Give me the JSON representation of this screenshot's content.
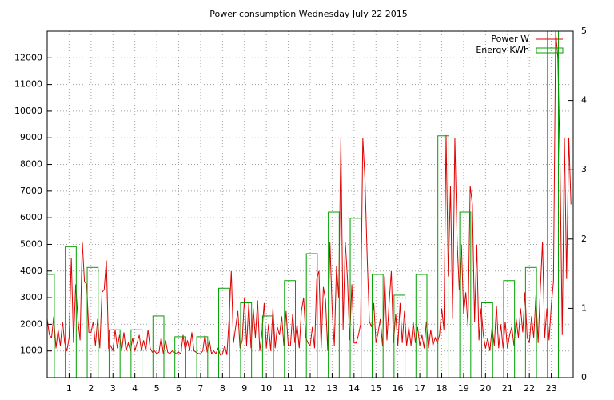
{
  "chart_data": {
    "type": "line",
    "title": "Power consumption Wednesday July 22 2015",
    "xlim": [
      0,
      24
    ],
    "xticks": [
      1,
      2,
      3,
      4,
      5,
      6,
      7,
      8,
      9,
      10,
      11,
      12,
      13,
      14,
      15,
      16,
      17,
      18,
      19,
      20,
      21,
      22,
      23
    ],
    "ylim": [
      0,
      13000
    ],
    "yticks": [
      1000,
      2000,
      3000,
      4000,
      5000,
      6000,
      7000,
      8000,
      9000,
      10000,
      11000,
      12000
    ],
    "y2lim": [
      0,
      5
    ],
    "y2ticks": [
      0,
      1,
      2,
      3,
      4,
      5
    ],
    "grid": true,
    "legend": "top-right",
    "series": [
      {
        "name": "Power W",
        "color": "#e00000",
        "style": "line",
        "x": [
          0,
          0.1,
          0.2,
          0.3,
          0.4,
          0.5,
          0.6,
          0.7,
          0.8,
          0.9,
          1,
          1.1,
          1.2,
          1.3,
          1.4,
          1.5,
          1.6,
          1.7,
          1.8,
          1.9,
          2,
          2.1,
          2.2,
          2.3,
          2.4,
          2.5,
          2.6,
          2.7,
          2.8,
          2.9,
          3,
          3.1,
          3.2,
          3.3,
          3.4,
          3.5,
          3.6,
          3.7,
          3.8,
          3.9,
          4,
          4.1,
          4.2,
          4.3,
          4.4,
          4.5,
          4.6,
          4.7,
          4.8,
          4.9,
          5,
          5.1,
          5.2,
          5.3,
          5.4,
          5.5,
          5.6,
          5.7,
          5.8,
          5.9,
          6,
          6.1,
          6.2,
          6.3,
          6.4,
          6.5,
          6.6,
          6.7,
          6.8,
          6.9,
          7,
          7.1,
          7.2,
          7.3,
          7.4,
          7.5,
          7.6,
          7.7,
          7.8,
          7.9,
          8,
          8.1,
          8.2,
          8.3,
          8.4,
          8.5,
          8.6,
          8.7,
          8.8,
          8.9,
          9,
          9.1,
          9.2,
          9.3,
          9.4,
          9.5,
          9.6,
          9.7,
          9.8,
          9.9,
          10,
          10.1,
          10.2,
          10.3,
          10.4,
          10.5,
          10.6,
          10.7,
          10.8,
          10.9,
          11,
          11.1,
          11.2,
          11.3,
          11.4,
          11.5,
          11.6,
          11.7,
          11.8,
          11.9,
          12,
          12.1,
          12.2,
          12.3,
          12.4,
          12.5,
          12.6,
          12.7,
          12.8,
          12.9,
          13,
          13.1,
          13.2,
          13.3,
          13.4,
          13.5,
          13.6,
          13.7,
          13.8,
          13.9,
          14,
          14.1,
          14.2,
          14.3,
          14.4,
          14.5,
          14.6,
          14.7,
          14.8,
          14.9,
          15,
          15.1,
          15.2,
          15.3,
          15.4,
          15.5,
          15.6,
          15.7,
          15.8,
          15.9,
          16,
          16.1,
          16.2,
          16.3,
          16.4,
          16.5,
          16.6,
          16.7,
          16.8,
          16.9,
          17,
          17.1,
          17.2,
          17.3,
          17.4,
          17.5,
          17.6,
          17.7,
          17.8,
          17.9,
          18,
          18.1,
          18.2,
          18.3,
          18.4,
          18.5,
          18.6,
          18.7,
          18.8,
          18.9,
          19,
          19.1,
          19.2,
          19.3,
          19.4,
          19.5,
          19.6,
          19.7,
          19.8,
          19.9,
          20,
          20.1,
          20.2,
          20.3,
          20.4,
          20.5,
          20.6,
          20.7,
          20.8,
          20.9,
          21,
          21.1,
          21.2,
          21.3,
          21.4,
          21.5,
          21.6,
          21.7,
          21.8,
          21.9,
          22,
          22.1,
          22.2,
          22.3,
          22.4,
          22.5,
          22.6,
          22.7,
          22.8,
          22.9,
          23,
          23.1,
          23.2,
          23.3,
          23.4,
          23.5,
          23.6,
          23.7,
          23.8,
          23.9
        ],
        "values": [
          2200,
          1600,
          1500,
          2300,
          1100,
          1800,
          1200,
          2100,
          1300,
          1000,
          1500,
          4500,
          1300,
          3500,
          2200,
          1400,
          5100,
          3600,
          3500,
          1700,
          1700,
          2100,
          1200,
          2200,
          1100,
          3200,
          3300,
          4400,
          1100,
          1200,
          1000,
          1800,
          1100,
          1600,
          1000,
          1700,
          1000,
          1300,
          1000,
          1500,
          1000,
          1300,
          1600,
          1000,
          1400,
          1000,
          1800,
          1100,
          950,
          1000,
          900,
          950,
          1500,
          900,
          1400,
          950,
          900,
          1000,
          950,
          900,
          950,
          900,
          1600,
          1000,
          1400,
          1000,
          1700,
          1000,
          950,
          900,
          900,
          1000,
          1600,
          950,
          1400,
          900,
          1000,
          900,
          1100,
          850,
          900,
          1200,
          850,
          2200,
          4000,
          1300,
          1900,
          2500,
          1100,
          1400,
          3000,
          1200,
          2800,
          1100,
          2600,
          1500,
          2900,
          1000,
          1700,
          2800,
          1100,
          2000,
          1000,
          2600,
          1100,
          1900,
          1600,
          2300,
          1200,
          2500,
          1200,
          1200,
          2400,
          1300,
          2000,
          1100,
          2500,
          3000,
          1500,
          1300,
          1200,
          1900,
          1100,
          3700,
          4000,
          1100,
          3400,
          2900,
          1000,
          5100,
          2600,
          1200,
          4200,
          3000,
          9000,
          1800,
          5100,
          3700,
          1400,
          3500,
          1300,
          1300,
          1600,
          2000,
          9000,
          7400,
          4500,
          2100,
          1900,
          2800,
          1300,
          1700,
          2200,
          1200,
          3800,
          1400,
          2800,
          4000,
          1300,
          2400,
          1200,
          2800,
          1300,
          2500,
          1200,
          1900,
          1200,
          2100,
          1300,
          1900,
          1200,
          1600,
          1100,
          2100,
          1100,
          1800,
          1200,
          1500,
          1300,
          1600,
          2600,
          1800,
          9100,
          3800,
          7200,
          2200,
          9000,
          5200,
          3300,
          5000,
          2400,
          3200,
          1900,
          7200,
          6500,
          2100,
          5000,
          1400,
          2600,
          1600,
          1100,
          1500,
          1000,
          1900,
          1200,
          2700,
          1100,
          2000,
          1100,
          2100,
          1100,
          1600,
          1900,
          1200,
          2200,
          1500,
          2600,
          1700,
          3200,
          1500,
          1300,
          2300,
          1500,
          3100,
          1300,
          3300,
          5100,
          1500,
          2600,
          1400,
          2700,
          3600,
          13000,
          12000,
          8000,
          1600,
          9000,
          3700,
          9000,
          6500
        ]
      },
      {
        "name": "Energy KWh",
        "color": "#00a000",
        "style": "boxes",
        "axis": "y2",
        "x": [
          0,
          1,
          2,
          3,
          4,
          5,
          6,
          7,
          8,
          9,
          10,
          11,
          12,
          13,
          14,
          15,
          16,
          17,
          18,
          19,
          20,
          21,
          22,
          23
        ],
        "values": [
          1.49,
          1.89,
          1.59,
          0.69,
          0.69,
          0.89,
          0.59,
          0.59,
          1.29,
          1.08,
          0.89,
          1.4,
          1.79,
          2.39,
          2.3,
          1.49,
          1.19,
          1.49,
          3.49,
          2.39,
          1.08,
          1.4,
          1.59,
          5
        ]
      }
    ]
  }
}
